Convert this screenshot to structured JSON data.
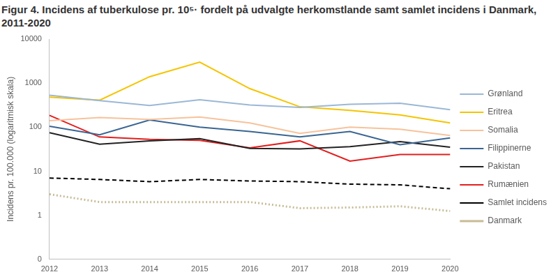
{
  "chart_data": {
    "type": "line",
    "title": "Figur 4. Incidens af tuberkulose pr. 10⁵· fordelt på udvalgte herkomstlande samt samlet incidens i Danmark, 2011-2020",
    "y_label": "Incidens pr. 100.000 (logaritmisk skala)",
    "categories": [
      "2012",
      "2013",
      "2014",
      "2015",
      "2016",
      "2017",
      "2018",
      "2019",
      "2020"
    ],
    "log": "y",
    "ylim": [
      0.1,
      10000
    ],
    "yticks": [
      {
        "value": 0.1,
        "label": "0"
      },
      1,
      10,
      100,
      1000,
      10000
    ],
    "grid": false,
    "legend": "right",
    "marker": "none",
    "series": [
      {
        "name": "Grønland",
        "color": "#9bb7d6",
        "line_style": "solid",
        "values": [
          530,
          400,
          310,
          420,
          320,
          280,
          330,
          350,
          250
        ]
      },
      {
        "name": "Eritrea",
        "color": "#f5c400",
        "line_style": "solid",
        "values": [
          480,
          410,
          1400,
          3000,
          750,
          290,
          240,
          190,
          125
        ]
      },
      {
        "name": "Somalia",
        "color": "#f7c29b",
        "line_style": "solid",
        "values": [
          140,
          165,
          150,
          170,
          125,
          72,
          100,
          90,
          65
        ]
      },
      {
        "name": "Filippinerne",
        "color": "#3a6592",
        "line_style": "solid",
        "values": [
          105,
          67,
          145,
          100,
          80,
          60,
          80,
          40,
          57
        ]
      },
      {
        "name": "Pakistan",
        "color": "#222222",
        "line_style": "solid",
        "values": [
          75,
          41,
          49,
          55,
          33,
          32,
          36,
          47,
          35
        ]
      },
      {
        "name": "Rumænien",
        "color": "#e31e1e",
        "line_style": "solid",
        "values": [
          185,
          60,
          53,
          50,
          34,
          49,
          17,
          24,
          24
        ]
      },
      {
        "name": "Samlet incidens",
        "color": "#000000",
        "line_style": "dashed",
        "values": [
          7.0,
          6.5,
          5.8,
          6.5,
          6.0,
          5.8,
          5.1,
          4.9,
          4.0
        ]
      },
      {
        "name": "Danmark",
        "color": "#c8bc96",
        "line_style": "dotted",
        "values": [
          3.0,
          2.0,
          2.0,
          2.0,
          2.0,
          1.45,
          1.5,
          1.6,
          1.25
        ]
      }
    ]
  }
}
